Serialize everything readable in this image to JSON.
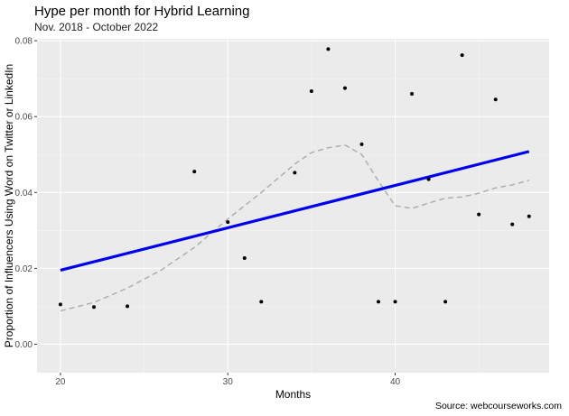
{
  "chart_data": {
    "type": "scatter",
    "title": "Hype per month for Hybrid Learning",
    "subtitle": "Nov. 2018 - October 2022",
    "xlabel": "Months",
    "ylabel": "Proportion of Influencers Using Word on Twitter or LinkedIn",
    "caption": "Source: webcourseworks.com",
    "xlim": [
      18.6,
      49.2
    ],
    "ylim": [
      -0.0075,
      0.0805
    ],
    "x_ticks": [
      20,
      30,
      40
    ],
    "x_tick_labels": [
      "20",
      "30",
      "40"
    ],
    "y_ticks": [
      0.0,
      0.02,
      0.04,
      0.06,
      0.08
    ],
    "y_tick_labels": [
      "0.00",
      "0.02",
      "0.04",
      "0.06",
      "0.08"
    ],
    "grid": true,
    "legend": "none",
    "points": [
      {
        "x": 20,
        "y": 0.0105
      },
      {
        "x": 22,
        "y": 0.0098
      },
      {
        "x": 24,
        "y": 0.01
      },
      {
        "x": 28,
        "y": 0.0455
      },
      {
        "x": 30,
        "y": 0.0322
      },
      {
        "x": 31,
        "y": 0.0227
      },
      {
        "x": 32,
        "y": 0.0112
      },
      {
        "x": 34,
        "y": 0.0452
      },
      {
        "x": 35,
        "y": 0.0667
      },
      {
        "x": 36,
        "y": 0.0778
      },
      {
        "x": 37,
        "y": 0.0675
      },
      {
        "x": 38,
        "y": 0.0527
      },
      {
        "x": 39,
        "y": 0.0112
      },
      {
        "x": 40,
        "y": 0.0112
      },
      {
        "x": 41,
        "y": 0.066
      },
      {
        "x": 42,
        "y": 0.0435
      },
      {
        "x": 43,
        "y": 0.0112
      },
      {
        "x": 44,
        "y": 0.0762
      },
      {
        "x": 45,
        "y": 0.0342
      },
      {
        "x": 46,
        "y": 0.0645
      },
      {
        "x": 47,
        "y": 0.0316
      },
      {
        "x": 48,
        "y": 0.0337
      }
    ],
    "linear_fit": {
      "color": "#0000ee",
      "x": [
        20,
        48
      ],
      "y": [
        0.0195,
        0.0508
      ]
    },
    "loess_fit": {
      "color": "#aaaaaa",
      "dashed": true,
      "x": [
        20,
        22,
        24,
        26,
        28,
        30,
        32,
        34,
        35,
        36,
        37,
        38,
        39,
        40,
        41,
        42,
        43,
        44,
        45,
        46,
        47,
        48
      ],
      "y": [
        0.0088,
        0.011,
        0.0148,
        0.0195,
        0.0255,
        0.033,
        0.04,
        0.0475,
        0.0505,
        0.0518,
        0.0525,
        0.05,
        0.043,
        0.0365,
        0.0358,
        0.0372,
        0.0385,
        0.0388,
        0.0398,
        0.0412,
        0.042,
        0.0432
      ]
    },
    "colors": {
      "panel_background": "#ebebeb",
      "grid_major": "#ffffff",
      "points": "#000000"
    }
  }
}
